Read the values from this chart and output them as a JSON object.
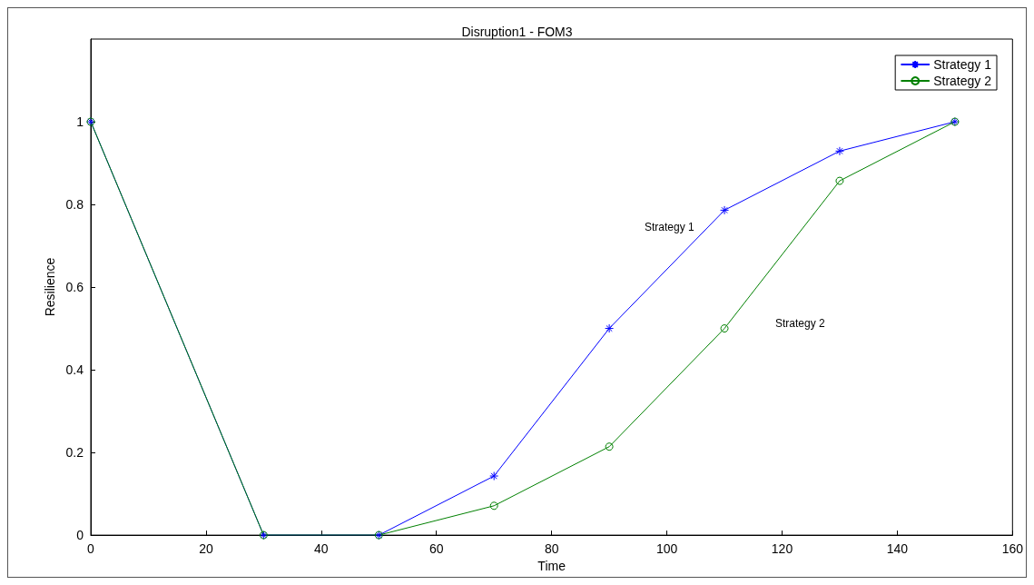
{
  "chart_data": {
    "type": "line",
    "title": "Disruption1 - FOM3",
    "xlabel": "Time",
    "ylabel": "Resilience",
    "xlim": [
      0,
      160
    ],
    "xticks": [
      0,
      20,
      40,
      60,
      80,
      100,
      120,
      140,
      160
    ],
    "ylim": [
      0,
      1.2
    ],
    "yticks": [
      0,
      0.2,
      0.4,
      0.6,
      0.8,
      1
    ],
    "grid": false,
    "legend": "top right",
    "line_style": "solid",
    "series": [
      {
        "name": "Strategy 1",
        "color": "#0000ff",
        "marker": "cross",
        "x": [
          0,
          30,
          50,
          70,
          90,
          110,
          130,
          150
        ],
        "values": [
          1,
          0,
          0,
          0.143,
          0.5,
          0.786,
          0.929,
          1
        ]
      },
      {
        "name": "Strategy 2",
        "color": "#008000",
        "marker": "circle",
        "x": [
          0,
          30,
          50,
          70,
          90,
          110,
          130,
          150
        ],
        "values": [
          1,
          0,
          0,
          0.071,
          0.214,
          0.5,
          0.857,
          1
        ]
      }
    ],
    "annotations": [
      "Strategy 1",
      "Strategy 2"
    ]
  }
}
